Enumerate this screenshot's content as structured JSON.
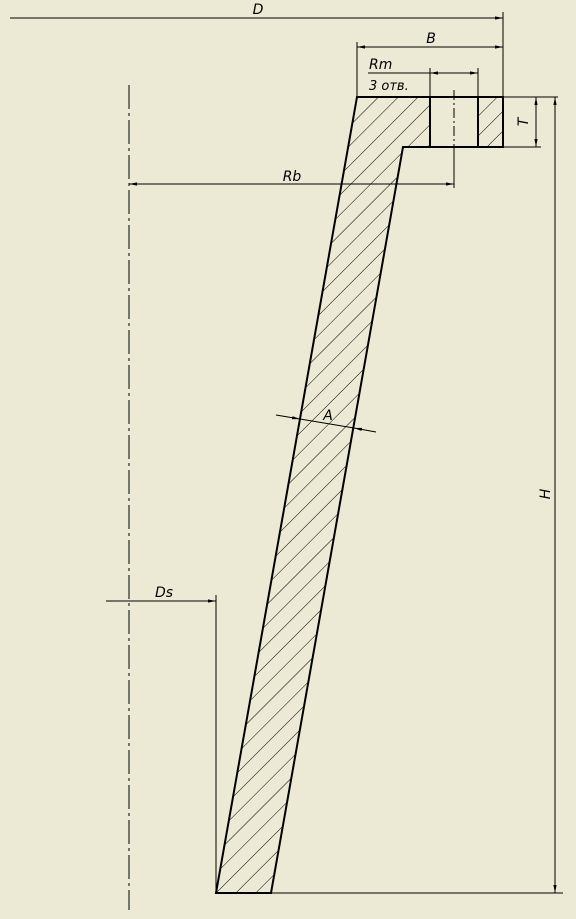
{
  "drawing": {
    "dimensions": {
      "D": "D",
      "B": "B",
      "Rm": "Rm",
      "holes": "3 отв.",
      "T": "T",
      "Rb": "Rb",
      "A": "A",
      "H": "H",
      "Ds": "Ds"
    },
    "colors": {
      "background": "#ecead5",
      "line": "#000000"
    }
  }
}
